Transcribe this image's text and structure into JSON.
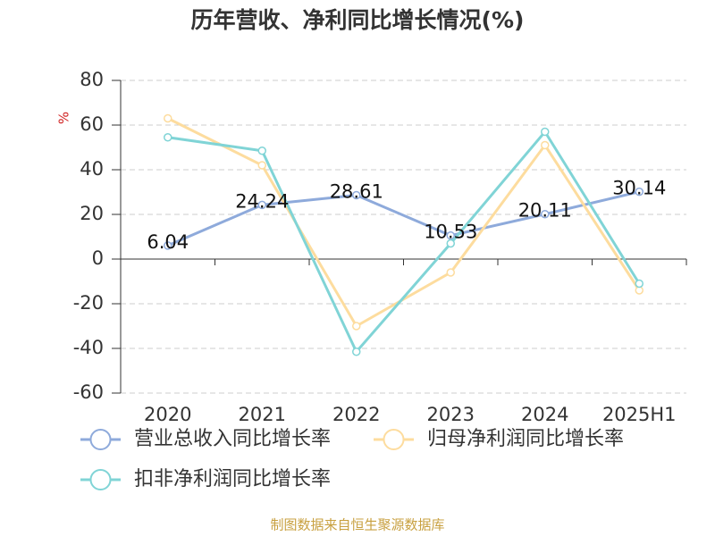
{
  "chart_data": {
    "type": "line",
    "title": "历年营收、净利同比增长情况(%)",
    "y_label": "%",
    "categories": [
      "2020",
      "2021",
      "2022",
      "2023",
      "2024",
      "2025H1"
    ],
    "series": [
      {
        "name": "营业总收入同比增长率",
        "color": "#8eaadb",
        "values": [
          6.04,
          24.24,
          28.61,
          10.53,
          20.11,
          30.14
        ],
        "show_labels": true
      },
      {
        "name": "归母净利润同比增长率",
        "color": "#fddc9e",
        "values": [
          63,
          42,
          -30,
          -6,
          51,
          -14
        ],
        "show_labels": false
      },
      {
        "name": "扣非净利润同比增长率",
        "color": "#80d4d6",
        "values": [
          54.5,
          48.5,
          -41.5,
          7,
          57,
          -11
        ],
        "show_labels": false
      }
    ],
    "ylim": [
      -60,
      80
    ],
    "yticks": [
      -60,
      -40,
      -20,
      0,
      20,
      40,
      60,
      80
    ],
    "grid": true,
    "legend": "bottom",
    "source": "制图数据来自恒生聚源数据库"
  }
}
